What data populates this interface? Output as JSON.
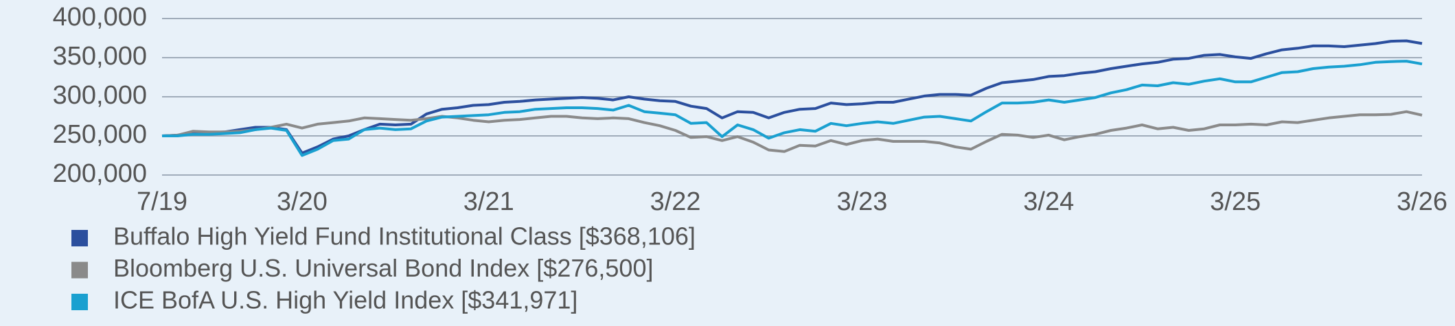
{
  "chart_data": {
    "type": "line",
    "categories": [
      "7/19",
      null,
      null,
      null,
      null,
      null,
      null,
      null,
      null,
      "3/20",
      null,
      null,
      null,
      null,
      null,
      null,
      null,
      null,
      null,
      null,
      null,
      "3/21",
      null,
      null,
      null,
      null,
      null,
      null,
      null,
      null,
      null,
      null,
      null,
      "3/22",
      null,
      null,
      null,
      null,
      null,
      null,
      null,
      null,
      null,
      null,
      null,
      "3/23",
      null,
      null,
      null,
      null,
      null,
      null,
      null,
      null,
      null,
      null,
      null,
      "3/24",
      null,
      null,
      null,
      null,
      null,
      null,
      null,
      null,
      null,
      null,
      null,
      "3/25",
      null,
      null,
      null,
      null,
      null,
      null,
      null,
      null,
      null,
      null,
      null,
      "3/26"
    ],
    "series": [
      {
        "name": "Buffalo High Yield Fund Institutional Class [$368,106]",
        "color": "#2b4f9e",
        "values": [
          250000,
          251000,
          253000,
          254000,
          255000,
          258000,
          261000,
          261000,
          258000,
          228000,
          236000,
          246000,
          250000,
          258000,
          265000,
          264000,
          265000,
          278000,
          284000,
          286000,
          289000,
          290000,
          293000,
          294000,
          296000,
          297000,
          298000,
          299000,
          298000,
          296000,
          300000,
          297000,
          295000,
          294000,
          288000,
          285000,
          273000,
          281000,
          280000,
          273000,
          280000,
          284000,
          285000,
          292000,
          290000,
          291000,
          293000,
          293000,
          297000,
          301000,
          303000,
          303000,
          302000,
          311000,
          318000,
          320000,
          322000,
          326000,
          327000,
          330000,
          332000,
          336000,
          339000,
          342000,
          344000,
          348000,
          349000,
          353000,
          354000,
          351000,
          349000,
          355000,
          360000,
          362000,
          365000,
          365000,
          364000,
          366000,
          368000,
          371000,
          371500,
          368106
        ]
      },
      {
        "name": "Bloomberg U.S. Universal Bond Index [$276,500]",
        "color": "#8a8a8a",
        "values": [
          250000,
          251000,
          256000,
          255000,
          255000,
          256000,
          258000,
          261000,
          265000,
          260000,
          265000,
          267000,
          269000,
          273000,
          272000,
          271000,
          270000,
          272000,
          275000,
          273000,
          270000,
          268000,
          270000,
          271000,
          273000,
          275000,
          275000,
          273000,
          272000,
          273000,
          272000,
          267000,
          263000,
          257000,
          248000,
          249000,
          244000,
          249000,
          242000,
          232000,
          230000,
          238000,
          237000,
          244000,
          239000,
          244000,
          246000,
          243000,
          243000,
          243000,
          241000,
          236000,
          233000,
          243000,
          252000,
          251000,
          248000,
          251000,
          245000,
          249000,
          252000,
          257000,
          260000,
          264000,
          259000,
          261000,
          257000,
          259000,
          264000,
          264000,
          265000,
          264000,
          268000,
          267000,
          270000,
          273000,
          275000,
          277000,
          277000,
          277500,
          281000,
          276500
        ]
      },
      {
        "name": "ICE BofA U.S. High Yield Index [$341,971]",
        "color": "#1aa0d0",
        "values": [
          250000,
          250000,
          252000,
          252000,
          253000,
          254000,
          258000,
          260000,
          257000,
          225000,
          233000,
          244000,
          246000,
          258000,
          260000,
          258000,
          259000,
          269000,
          274000,
          275000,
          276000,
          277000,
          280000,
          281000,
          284000,
          285000,
          286000,
          286000,
          285000,
          283000,
          289000,
          281000,
          279000,
          277000,
          266000,
          267000,
          249000,
          264000,
          258000,
          247000,
          254000,
          258000,
          256000,
          266000,
          263000,
          266000,
          268000,
          266000,
          270000,
          274000,
          275000,
          272000,
          269000,
          281000,
          292000,
          292000,
          293000,
          296000,
          293000,
          296000,
          299000,
          305000,
          309000,
          315000,
          314000,
          318000,
          316000,
          320000,
          323000,
          319000,
          319000,
          325000,
          331000,
          332000,
          336000,
          338000,
          339000,
          341000,
          344000,
          345000,
          345500,
          341971
        ]
      }
    ],
    "ylim": [
      200000,
      400000
    ],
    "yticks": [
      {
        "value": 200000,
        "label": "200,000"
      },
      {
        "value": 250000,
        "label": "250,000"
      },
      {
        "value": 300000,
        "label": "300,000"
      },
      {
        "value": 350000,
        "label": "350,000"
      },
      {
        "value": 400000,
        "label": "400,000"
      }
    ],
    "grid": true
  }
}
